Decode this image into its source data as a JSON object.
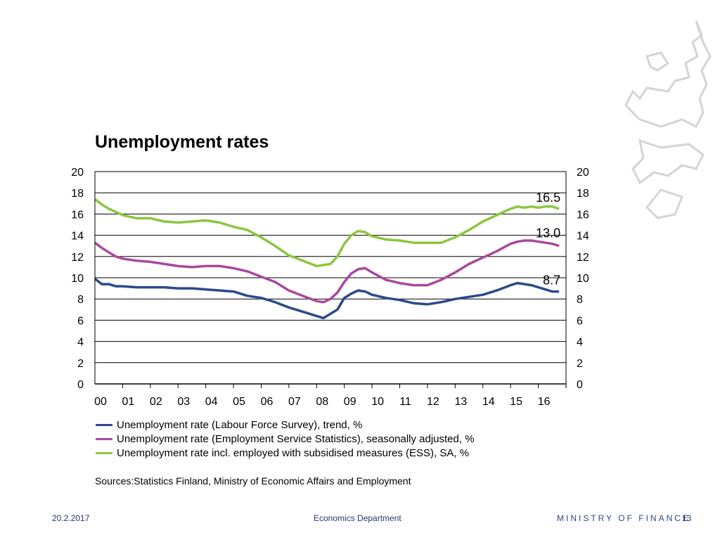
{
  "slide": {
    "title": "Unemployment rates",
    "sources_label": "Sources:",
    "sources_text": "Statistics Finland, Ministry of Economic Affairs and Employment",
    "footer_date": "20.2.2017",
    "footer_department": "Economics Department",
    "footer_ministry": "MINISTRY OF FINANCE",
    "page_number": "13",
    "logo_icon": "lion-crest-icon"
  },
  "chart_data": {
    "type": "line",
    "title": "Unemployment rates",
    "xlabel": "",
    "ylabel": "",
    "ylim": [
      0,
      20
    ],
    "y_ticks": [
      "0",
      "2",
      "4",
      "6",
      "8",
      "10",
      "12",
      "14",
      "16",
      "18",
      "20"
    ],
    "x_ticks": [
      "00",
      "01",
      "02",
      "03",
      "04",
      "05",
      "06",
      "07",
      "08",
      "09",
      "10",
      "11",
      "12",
      "13",
      "14",
      "15",
      "16"
    ],
    "x_range": [
      2000,
      2017
    ],
    "grid": "horizontal",
    "dual_y_axis": true,
    "legend_position": "bottom",
    "end_labels": [
      "16.5",
      "13.0",
      "8.7"
    ],
    "series": [
      {
        "name": "Unemployment rate (Labour Force Survey), trend, %",
        "color": "#2b4a8b",
        "x": [
          2000.0,
          2000.25,
          2000.5,
          2000.75,
          2001.0,
          2001.5,
          2002.0,
          2002.5,
          2003.0,
          2003.5,
          2004.0,
          2004.5,
          2005.0,
          2005.5,
          2006.0,
          2006.5,
          2007.0,
          2007.5,
          2008.0,
          2008.25,
          2008.5,
          2008.75,
          2009.0,
          2009.25,
          2009.5,
          2009.75,
          2010.0,
          2010.5,
          2011.0,
          2011.5,
          2012.0,
          2012.5,
          2013.0,
          2013.5,
          2014.0,
          2014.5,
          2015.0,
          2015.25,
          2015.5,
          2015.75,
          2016.0,
          2016.25,
          2016.5,
          2016.75
        ],
        "values": [
          9.9,
          9.4,
          9.4,
          9.2,
          9.2,
          9.1,
          9.1,
          9.1,
          9.0,
          9.0,
          8.9,
          8.8,
          8.7,
          8.3,
          8.1,
          7.7,
          7.2,
          6.8,
          6.4,
          6.2,
          6.6,
          7.0,
          8.1,
          8.5,
          8.8,
          8.7,
          8.4,
          8.1,
          7.9,
          7.6,
          7.5,
          7.7,
          8.0,
          8.2,
          8.4,
          8.8,
          9.3,
          9.5,
          9.4,
          9.3,
          9.1,
          8.9,
          8.7,
          8.7
        ]
      },
      {
        "name": "Unemployment rate (Employment Service Statistics), seasonally adjusted, %",
        "color": "#a8489e",
        "x": [
          2000.0,
          2000.25,
          2000.5,
          2000.75,
          2001.0,
          2001.5,
          2002.0,
          2002.5,
          2003.0,
          2003.5,
          2004.0,
          2004.5,
          2005.0,
          2005.5,
          2006.0,
          2006.5,
          2007.0,
          2007.5,
          2008.0,
          2008.25,
          2008.5,
          2008.75,
          2009.0,
          2009.25,
          2009.5,
          2009.75,
          2010.0,
          2010.5,
          2011.0,
          2011.5,
          2012.0,
          2012.5,
          2013.0,
          2013.5,
          2014.0,
          2014.5,
          2015.0,
          2015.25,
          2015.5,
          2015.75,
          2016.0,
          2016.25,
          2016.5,
          2016.75
        ],
        "values": [
          13.3,
          12.8,
          12.4,
          12.0,
          11.8,
          11.6,
          11.5,
          11.3,
          11.1,
          11.0,
          11.1,
          11.1,
          10.9,
          10.6,
          10.1,
          9.6,
          8.8,
          8.3,
          7.8,
          7.7,
          8.0,
          8.6,
          9.6,
          10.4,
          10.8,
          10.9,
          10.5,
          9.8,
          9.5,
          9.3,
          9.3,
          9.8,
          10.5,
          11.3,
          11.9,
          12.5,
          13.2,
          13.4,
          13.5,
          13.5,
          13.4,
          13.3,
          13.2,
          13.0
        ]
      },
      {
        "name": "Unemployment rate incl. employed with subsidised measures (ESS), SA, %",
        "color": "#8cc63f",
        "x": [
          2000.0,
          2000.25,
          2000.5,
          2000.75,
          2001.0,
          2001.5,
          2002.0,
          2002.5,
          2003.0,
          2003.5,
          2004.0,
          2004.5,
          2005.0,
          2005.5,
          2006.0,
          2006.5,
          2007.0,
          2007.5,
          2008.0,
          2008.25,
          2008.5,
          2008.75,
          2009.0,
          2009.25,
          2009.5,
          2009.75,
          2010.0,
          2010.5,
          2011.0,
          2011.5,
          2012.0,
          2012.5,
          2013.0,
          2013.5,
          2014.0,
          2014.5,
          2015.0,
          2015.25,
          2015.5,
          2015.75,
          2016.0,
          2016.25,
          2016.5,
          2016.75
        ],
        "values": [
          17.4,
          16.9,
          16.5,
          16.2,
          15.9,
          15.6,
          15.6,
          15.3,
          15.2,
          15.3,
          15.4,
          15.2,
          14.8,
          14.5,
          13.8,
          13.0,
          12.1,
          11.6,
          11.1,
          11.2,
          11.3,
          12.0,
          13.2,
          14.0,
          14.4,
          14.3,
          13.9,
          13.6,
          13.5,
          13.3,
          13.3,
          13.3,
          13.8,
          14.5,
          15.3,
          15.9,
          16.5,
          16.7,
          16.6,
          16.7,
          16.6,
          16.7,
          16.7,
          16.5
        ]
      }
    ]
  }
}
